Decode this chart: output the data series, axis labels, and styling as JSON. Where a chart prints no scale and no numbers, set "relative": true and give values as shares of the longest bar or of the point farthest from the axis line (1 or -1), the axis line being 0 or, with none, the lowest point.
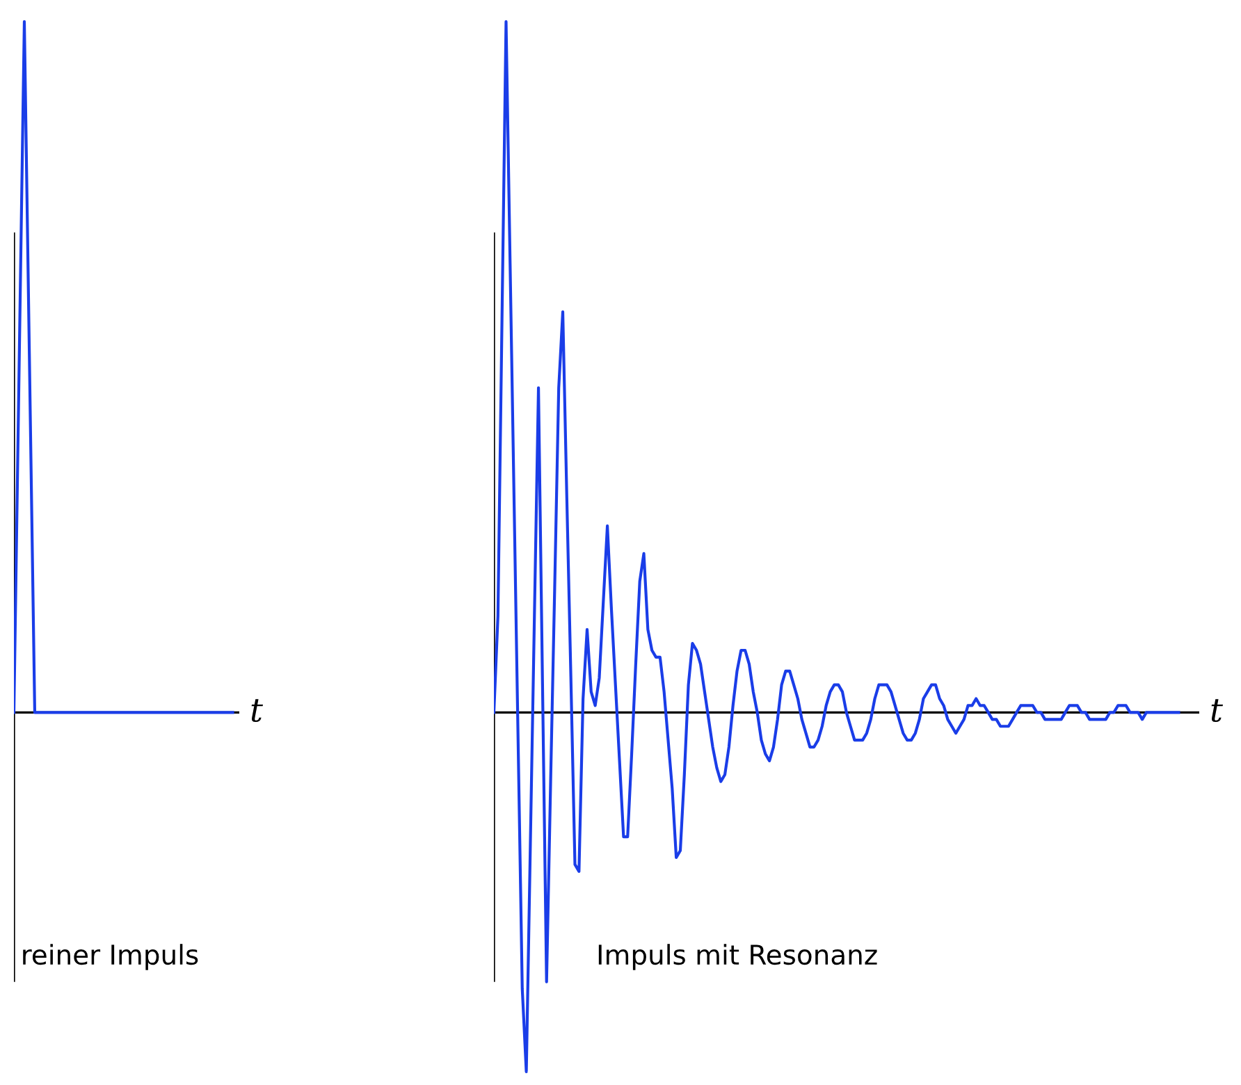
{
  "chart_data": [
    {
      "type": "line",
      "title": "reiner Impuls",
      "xlabel": "t",
      "relative": true,
      "tick_labels": false,
      "categories": [
        null,
        null,
        null,
        null,
        null,
        null,
        null,
        null,
        null,
        null,
        null,
        null,
        null,
        null,
        null,
        null,
        null,
        null,
        null,
        null,
        null,
        null
      ],
      "series": [
        {
          "color": "#1a3de8",
          "values": [
            0,
            1,
            0,
            0,
            0,
            0,
            0,
            0,
            0,
            0,
            0,
            0,
            0,
            0,
            0,
            0,
            0,
            0,
            0,
            0,
            0,
            0
          ]
        }
      ]
    },
    {
      "type": "line",
      "title": "Impuls mit Resonanz",
      "xlabel": "t",
      "relative": true,
      "tick_labels": false,
      "categories": [
        null,
        null,
        null,
        null,
        null,
        null,
        null,
        null,
        null,
        null,
        null,
        null,
        null,
        null,
        null,
        null,
        null,
        null,
        null,
        null,
        null,
        null,
        null,
        null,
        null,
        null,
        null,
        null,
        null,
        null,
        null,
        null,
        null,
        null,
        null,
        null,
        null,
        null,
        null,
        null,
        null,
        null,
        null,
        null,
        null,
        null,
        null,
        null,
        null,
        null,
        null,
        null,
        null,
        null,
        null,
        null,
        null,
        null,
        null,
        null,
        null,
        null,
        null,
        null,
        null,
        null,
        null,
        null,
        null,
        null,
        null,
        null,
        null,
        null,
        null,
        null,
        null,
        null,
        null,
        null,
        null,
        null,
        null,
        null,
        null,
        null,
        null,
        null,
        null,
        null,
        null,
        null,
        null,
        null,
        null,
        null,
        null,
        null,
        null,
        null,
        null,
        null,
        null,
        null,
        null,
        null,
        null,
        null,
        null,
        null,
        null,
        null,
        null,
        null,
        null,
        null,
        null,
        null,
        null,
        null,
        null,
        null,
        null,
        null,
        null,
        null,
        null,
        null,
        null,
        null,
        null,
        null,
        null,
        null,
        null,
        null,
        null,
        null,
        null,
        null,
        null,
        null,
        null,
        null,
        null,
        null,
        null,
        null,
        null,
        null,
        null,
        null,
        null,
        null,
        null,
        null,
        null,
        null,
        null,
        null,
        null,
        null,
        null,
        null,
        null,
        null,
        null,
        null,
        null,
        null
      ],
      "series": [
        {
          "color": "#1a3de8",
          "values": [
            0,
            0.14,
            0.57,
            1,
            0.65,
            0.3,
            -0.05,
            -0.4,
            -0.52,
            -0.19,
            0.14,
            0.47,
            0.04,
            -0.39,
            -0.1,
            0.18,
            0.47,
            0.58,
            0.31,
            0.05,
            -0.22,
            -0.23,
            0.02,
            0.12,
            0.03,
            0.01,
            0.05,
            0.16,
            0.27,
            0.15,
            0.04,
            -0.07,
            -0.18,
            -0.18,
            -0.06,
            0.07,
            0.19,
            0.23,
            0.12,
            0.09,
            0.08,
            0.08,
            0.03,
            -0.04,
            -0.11,
            -0.21,
            -0.2,
            -0.09,
            0.04,
            0.1,
            0.09,
            0.07,
            0.03,
            -0.01,
            -0.05,
            -0.08,
            -0.1,
            -0.09,
            -0.05,
            0.01,
            0.06,
            0.09,
            0.09,
            0.07,
            0.03,
            0,
            -0.04,
            -0.06,
            -0.07,
            -0.05,
            -0.01,
            0.04,
            0.06,
            0.06,
            0.04,
            0.02,
            -0.01,
            -0.03,
            -0.05,
            -0.05,
            -0.04,
            -0.02,
            0.01,
            0.03,
            0.04,
            0.04,
            0.03,
            0,
            -0.02,
            -0.04,
            -0.04,
            -0.04,
            -0.03,
            -0.01,
            0.02,
            0.04,
            0.04,
            0.04,
            0.03,
            0.01,
            -0.01,
            -0.03,
            -0.04,
            -0.04,
            -0.03,
            -0.01,
            0.02,
            0.03,
            0.04,
            0.04,
            0.02,
            0.01,
            -0.01,
            -0.02,
            -0.03,
            -0.02,
            -0.01,
            0.01,
            0.01,
            0.02,
            0.01,
            0.01,
            0,
            -0.01,
            -0.01,
            -0.02,
            -0.02,
            -0.02,
            -0.01,
            0,
            0.01,
            0.01,
            0.01,
            0.01,
            0,
            0,
            -0.01,
            -0.01,
            -0.01,
            -0.01,
            -0.01,
            0,
            0.01,
            0.01,
            0.01,
            0,
            0,
            -0.01,
            -0.01,
            -0.01,
            -0.01,
            -0.01,
            0,
            0,
            0.01,
            0.01,
            0.01,
            0,
            0,
            0,
            -0.01,
            0,
            0,
            0,
            0,
            0,
            0,
            0,
            0,
            0
          ]
        }
      ]
    }
  ]
}
